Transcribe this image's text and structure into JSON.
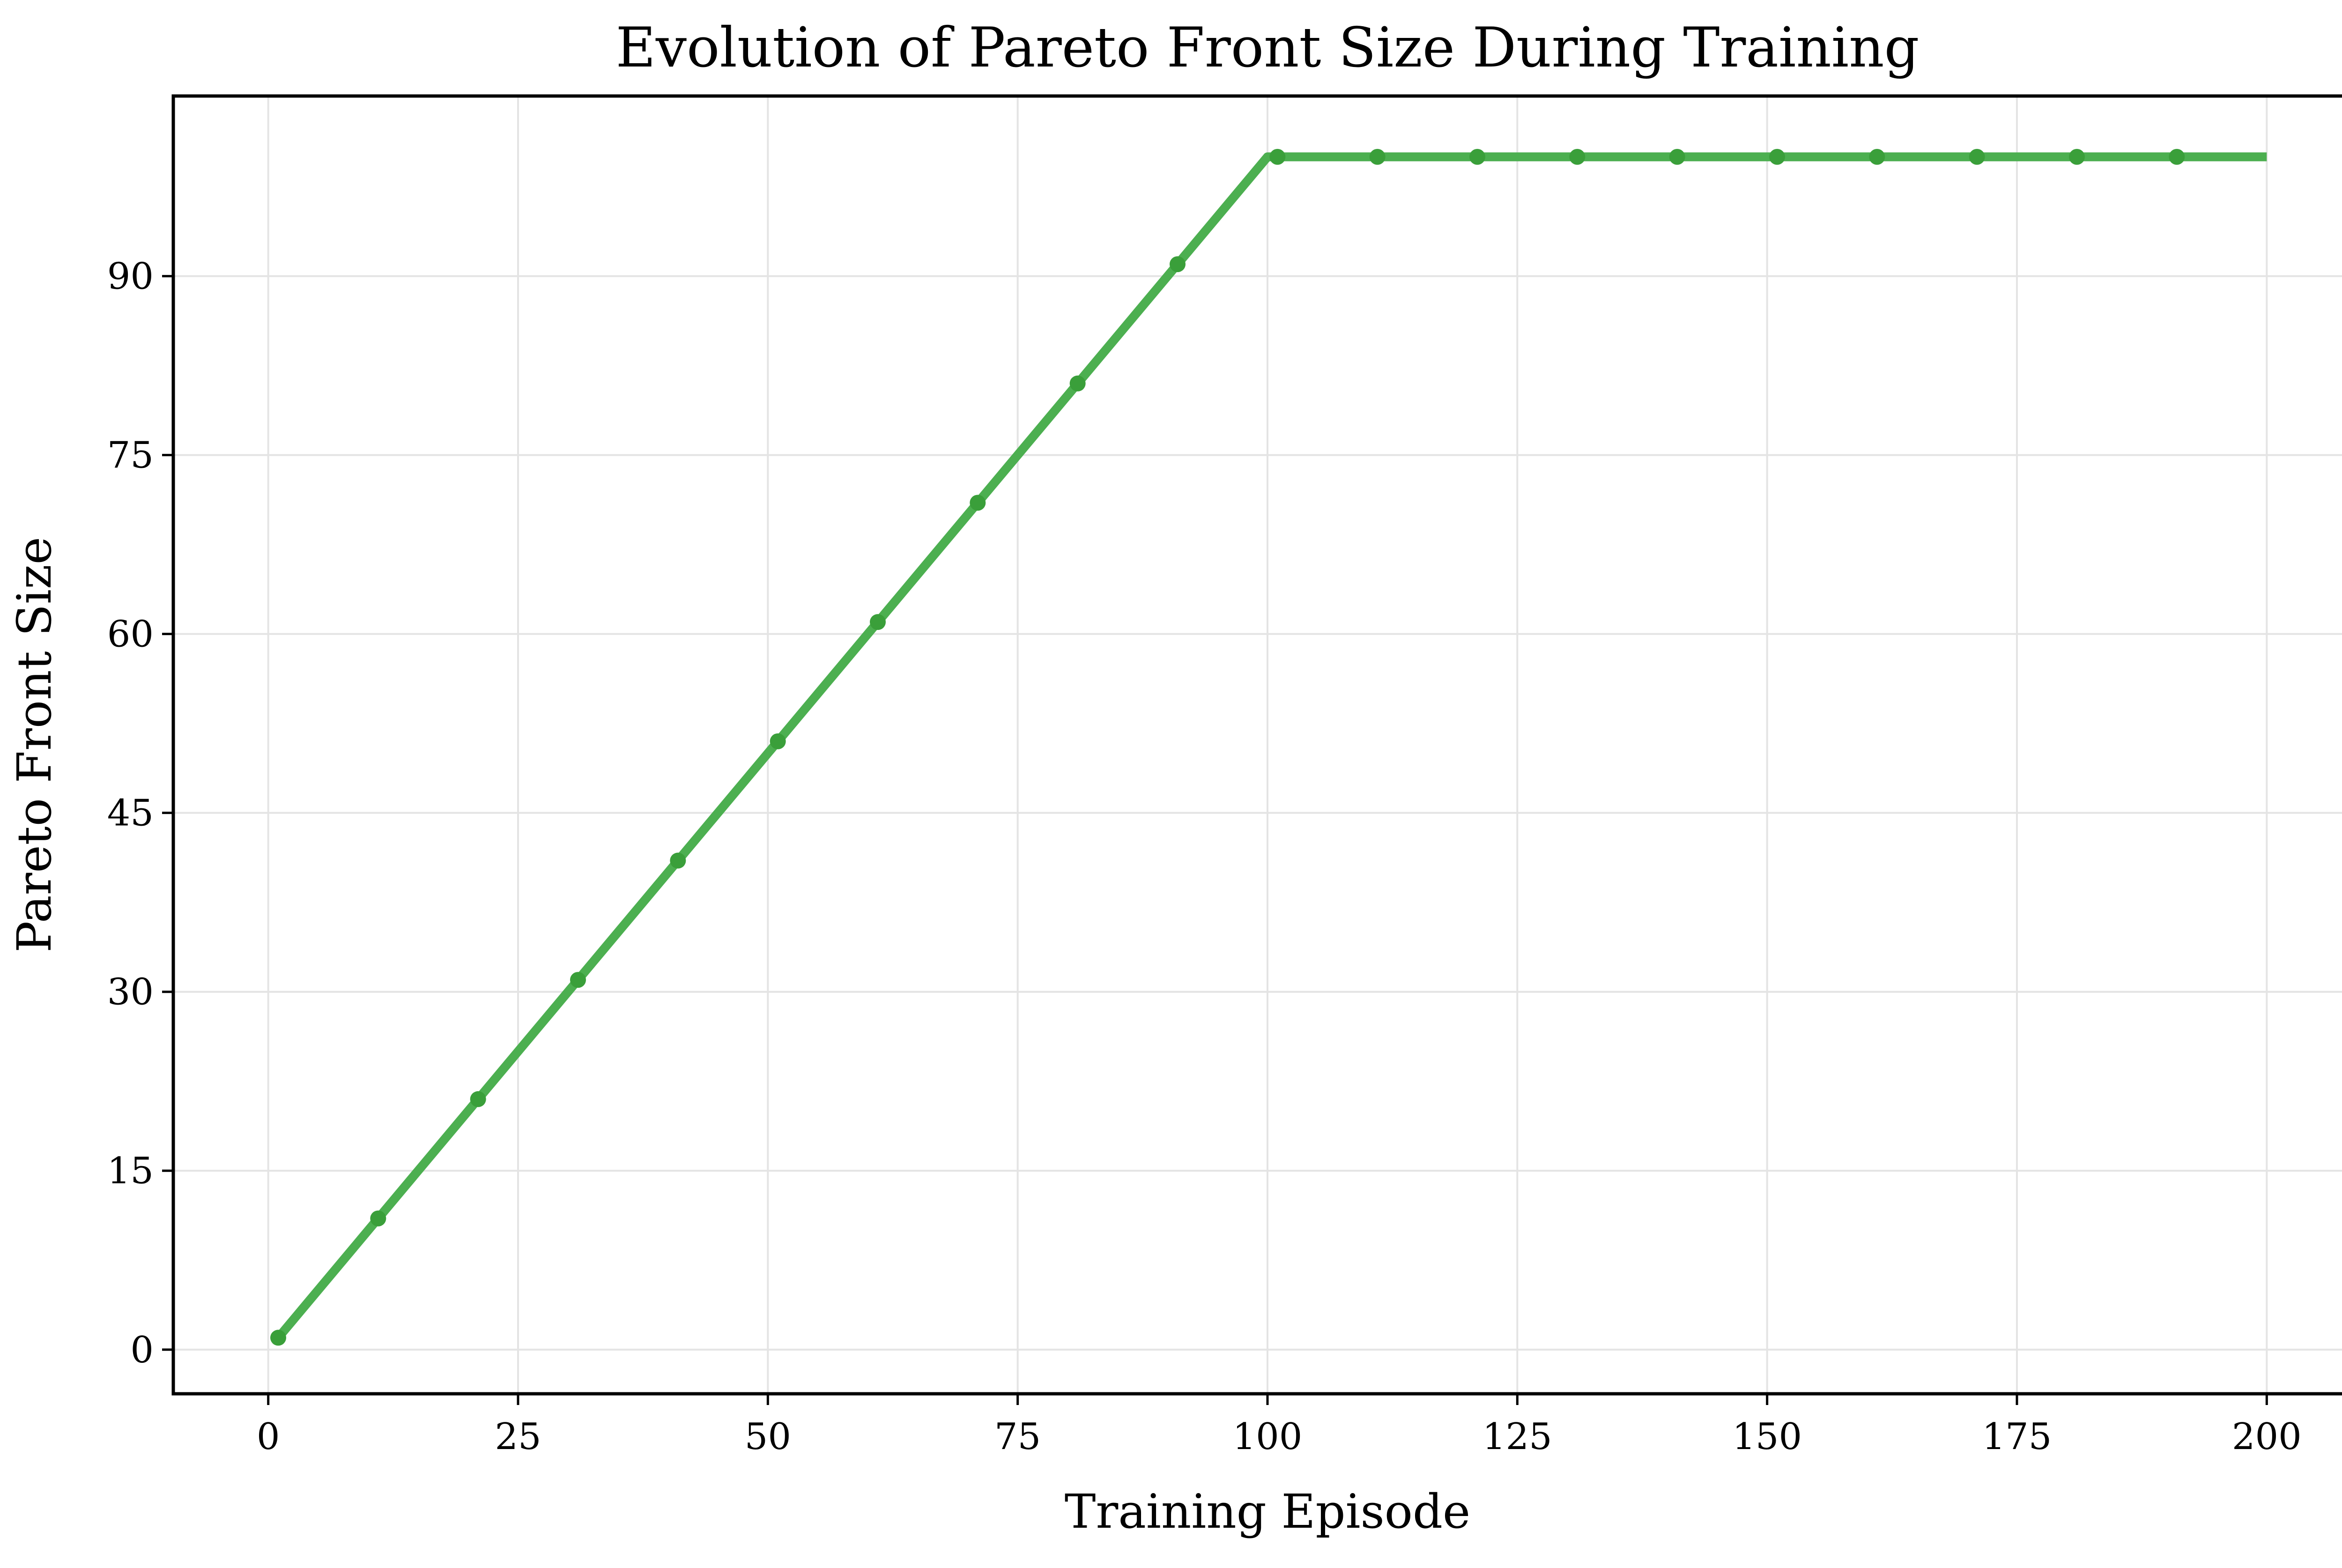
{
  "colors": {
    "line": "#4caf50",
    "marker": "#3a9f3a",
    "grid": "#e4e4e4",
    "frame": "#000000"
  },
  "chart_data": {
    "type": "line",
    "title": "Evolution of Pareto Front Size During Training",
    "xlabel": "Training Episode",
    "ylabel": "Pareto Front Size",
    "xlim": [
      -9.5,
      209.5
    ],
    "ylim": [
      -3.7,
      105.1
    ],
    "xticks": [
      0,
      25,
      50,
      75,
      100,
      125,
      150,
      175,
      200
    ],
    "yticks": [
      0,
      15,
      30,
      45,
      60,
      75,
      90
    ],
    "xtick_labels": [
      "0",
      "25",
      "50",
      "75",
      "100",
      "125",
      "150",
      "175",
      "200"
    ],
    "ytick_labels": [
      "0",
      "15",
      "30",
      "45",
      "60",
      "75",
      "90"
    ],
    "grid": true,
    "legend": "none",
    "series": [
      {
        "line": {
          "x": [
            1,
            100,
            200
          ],
          "y": [
            1,
            100,
            100
          ]
        },
        "markers": {
          "x": [
            1,
            11,
            21,
            31,
            41,
            51,
            61,
            71,
            81,
            91,
            101,
            111,
            121,
            131,
            141,
            151,
            161,
            171,
            181,
            191
          ],
          "y": [
            1,
            11,
            21,
            31,
            41,
            51,
            61,
            71,
            81,
            91,
            100,
            100,
            100,
            100,
            100,
            100,
            100,
            100,
            100,
            100
          ]
        }
      }
    ]
  }
}
